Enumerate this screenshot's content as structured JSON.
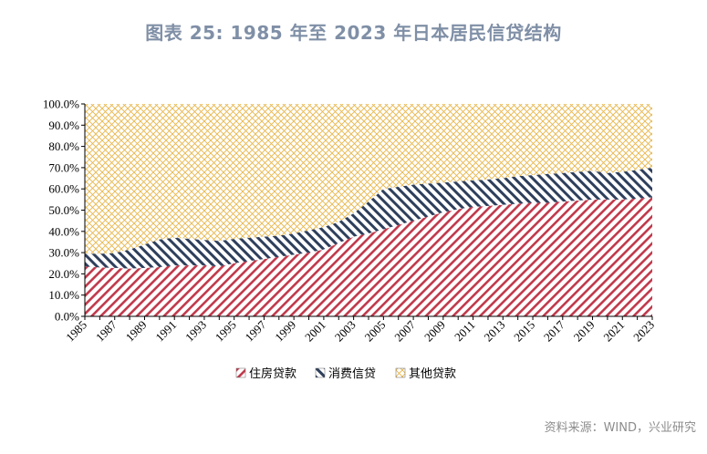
{
  "title": "图表 25: 1985 年至 2023 年日本居民信贷结构",
  "source": "资料来源：WIND，兴业研究",
  "chart_data": {
    "type": "area",
    "stacked": true,
    "x": [
      1985,
      1986,
      1987,
      1988,
      1989,
      1990,
      1991,
      1992,
      1993,
      1994,
      1995,
      1996,
      1997,
      1998,
      1999,
      2000,
      2001,
      2002,
      2003,
      2004,
      2005,
      2006,
      2007,
      2008,
      2009,
      2010,
      2011,
      2012,
      2013,
      2014,
      2015,
      2016,
      2017,
      2018,
      2019,
      2020,
      2021,
      2022,
      2023
    ],
    "x_tick_labels": [
      "1985",
      "1987",
      "1989",
      "1991",
      "1993",
      "1995",
      "1997",
      "1999",
      "2001",
      "2003",
      "2005",
      "2007",
      "2009",
      "2011",
      "2013",
      "2015",
      "2017",
      "2019",
      "2021",
      "2023"
    ],
    "y_tick_labels": [
      "0.0%",
      "10.0%",
      "20.0%",
      "30.0%",
      "40.0%",
      "50.0%",
      "60.0%",
      "70.0%",
      "80.0%",
      "90.0%",
      "100.0%"
    ],
    "ylim": [
      0,
      100
    ],
    "series": [
      {
        "name": "住房贷款",
        "color": "#c0394b",
        "values": [
          23.5,
          23,
          22.8,
          22.5,
          22.8,
          23.2,
          24,
          24,
          24,
          23.5,
          25,
          26,
          27,
          28,
          29,
          30,
          31.5,
          34.5,
          37.5,
          39,
          41,
          43,
          45,
          47,
          49,
          50.5,
          51.5,
          52,
          52.5,
          53,
          53.5,
          53.5,
          54,
          54.5,
          55,
          55,
          55,
          55.5,
          56
        ]
      },
      {
        "name": "消费信贷",
        "color": "#2e3f5c",
        "values": [
          6,
          6.5,
          7,
          9,
          11,
          13,
          13,
          12.5,
          12,
          12,
          11.5,
          11,
          10.5,
          10,
          10,
          10.5,
          10.5,
          10,
          11,
          15,
          19,
          18,
          17,
          15.5,
          14,
          13,
          12.5,
          12.5,
          12.5,
          13,
          13,
          13.5,
          13.5,
          13.5,
          13.5,
          12.5,
          13,
          13.5,
          14
        ]
      },
      {
        "name": "其他贷款",
        "color": "#e8b64a",
        "values": [
          70.5,
          70.5,
          70.2,
          68.5,
          66.2,
          63.8,
          63,
          63.5,
          64,
          64.5,
          63.5,
          63,
          62.5,
          62,
          61,
          59.5,
          58,
          55.5,
          51.5,
          46,
          40,
          39,
          38,
          37.5,
          37,
          36.5,
          36,
          35.5,
          35,
          34,
          33.5,
          33,
          32.5,
          32,
          31.5,
          32.5,
          32,
          31,
          30
        ]
      }
    ],
    "legend": "bottom",
    "grid": false
  }
}
